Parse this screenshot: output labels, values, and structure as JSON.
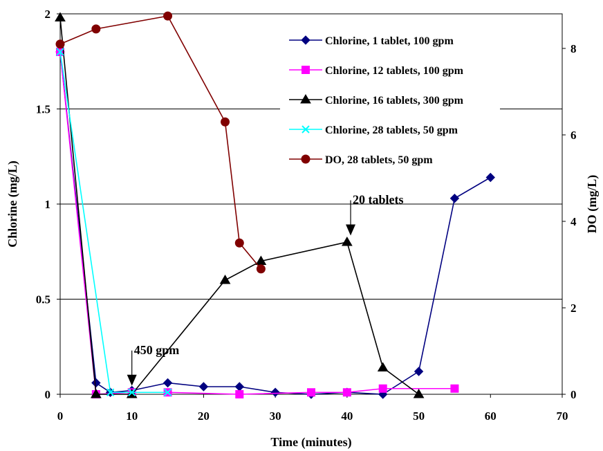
{
  "chart_data": {
    "type": "line",
    "xlabel": "Time (minutes)",
    "ylabel_left": "Chlorine (mg/L)",
    "ylabel_right": "DO (mg/L)",
    "xlim": [
      0,
      70
    ],
    "ylim_left": [
      0,
      2
    ],
    "ylim_right": [
      0,
      8.8
    ],
    "x_ticks": [
      0,
      10,
      20,
      30,
      40,
      50,
      60,
      70
    ],
    "y_left_ticks": [
      {
        "value": 0,
        "label": "0"
      },
      {
        "value": 0.5,
        "label": "0.5"
      },
      {
        "value": 1,
        "label": "1"
      },
      {
        "value": 1.5,
        "label": "1.5"
      },
      {
        "value": 2,
        "label": "2"
      }
    ],
    "y_right_ticks": [
      {
        "value": 0,
        "label": "0"
      },
      {
        "value": 2,
        "label": "2"
      },
      {
        "value": 4,
        "label": "4"
      },
      {
        "value": 6,
        "label": "6"
      },
      {
        "value": 8,
        "label": "8"
      }
    ],
    "grid": "horizontal",
    "legend_position": "top-right",
    "series": [
      {
        "name": "Chlorine, 1 tablet, 100 gpm",
        "axis": "left",
        "color": "#000080",
        "marker": "diamond",
        "points": [
          [
            0,
            1.8
          ],
          [
            5,
            0.06
          ],
          [
            7,
            0.01
          ],
          [
            10,
            0.02
          ],
          [
            15,
            0.06
          ],
          [
            20,
            0.04
          ],
          [
            25,
            0.04
          ],
          [
            30,
            0.01
          ],
          [
            35,
            0.0
          ],
          [
            40,
            0.01
          ],
          [
            45,
            0.0
          ],
          [
            50,
            0.12
          ],
          [
            55,
            1.03
          ],
          [
            60,
            1.14
          ]
        ]
      },
      {
        "name": "Chlorine, 12 tablets, 100 gpm",
        "axis": "left",
        "color": "#FF00FF",
        "marker": "square",
        "points": [
          [
            0,
            1.8
          ],
          [
            5,
            0.0
          ],
          [
            10,
            0.01
          ],
          [
            15,
            0.01
          ],
          [
            25,
            0.0
          ],
          [
            35,
            0.01
          ],
          [
            40,
            0.01
          ],
          [
            45,
            0.03
          ],
          [
            55,
            0.03
          ]
        ]
      },
      {
        "name": "Chlorine, 16 tablets, 300 gpm",
        "axis": "left",
        "color": "#000000",
        "marker": "triangle",
        "points": [
          [
            0,
            1.98
          ],
          [
            5,
            0.0
          ],
          [
            10,
            0.0
          ],
          [
            23,
            0.6
          ],
          [
            28,
            0.7
          ],
          [
            40,
            0.8
          ],
          [
            45,
            0.14
          ],
          [
            50,
            0.0
          ]
        ]
      },
      {
        "name": "Chlorine, 28 tablets, 50 gpm",
        "axis": "left",
        "color": "#00FFFF",
        "marker": "x",
        "points": [
          [
            0,
            1.8
          ],
          [
            7,
            0.01
          ],
          [
            10,
            0.01
          ],
          [
            15,
            0.01
          ]
        ]
      },
      {
        "name": "DO, 28 tablets, 50 gpm",
        "axis": "right",
        "color": "#800000",
        "marker": "circle",
        "points": [
          [
            0,
            8.1
          ],
          [
            5,
            8.45
          ],
          [
            15,
            8.75
          ],
          [
            23,
            6.3
          ],
          [
            25,
            3.5
          ],
          [
            28,
            2.9
          ]
        ]
      }
    ],
    "annotations": [
      {
        "text": "450 gpm",
        "x": 10,
        "y": 0.03
      },
      {
        "text": "20 tablets",
        "x": 40.5,
        "y": 0.82
      }
    ]
  }
}
